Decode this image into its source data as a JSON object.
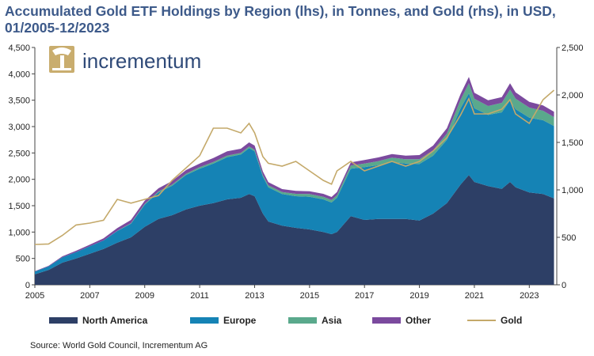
{
  "chart_data": {
    "type": "area",
    "title": "Accumulated Gold ETF Holdings by Region (lhs), in Tonnes, and Gold (rhs), in USD, 01/2005-12/2023",
    "brand": "incrementum",
    "source": "Source: World Gold Council, Incrementum AG",
    "x_ticks": [
      "2005",
      "2007",
      "2009",
      "2011",
      "2013",
      "2015",
      "2017",
      "2019",
      "2021",
      "2023"
    ],
    "y_left_ticks": [
      "0",
      "500",
      "1,000",
      "1,500",
      "2,000",
      "2,500",
      "3,000",
      "3,500",
      "4,000",
      "4,500"
    ],
    "y_right_ticks": [
      "0",
      "500",
      "1,000",
      "1,500",
      "2,000",
      "2,500"
    ],
    "ylim_left": [
      0,
      4500
    ],
    "ylim_right": [
      0,
      2500
    ],
    "xlim": [
      2005.0,
      2024.0
    ],
    "x": [
      2005.0,
      2005.5,
      2006.0,
      2006.5,
      2007.0,
      2007.5,
      2008.0,
      2008.5,
      2009.0,
      2009.5,
      2010.0,
      2010.5,
      2011.0,
      2011.5,
      2012.0,
      2012.5,
      2012.8,
      2013.0,
      2013.3,
      2013.5,
      2014.0,
      2014.5,
      2015.0,
      2015.5,
      2015.8,
      2016.0,
      2016.5,
      2017.0,
      2017.5,
      2018.0,
      2018.5,
      2019.0,
      2019.5,
      2020.0,
      2020.5,
      2020.8,
      2021.0,
      2021.5,
      2022.0,
      2022.3,
      2022.5,
      2023.0,
      2023.5,
      2023.9
    ],
    "series": [
      {
        "name": "North America",
        "color": "#2d3f66",
        "values": [
          200,
          280,
          420,
          500,
          590,
          680,
          800,
          900,
          1100,
          1250,
          1320,
          1430,
          1500,
          1550,
          1620,
          1650,
          1720,
          1680,
          1350,
          1200,
          1120,
          1080,
          1050,
          1000,
          960,
          1000,
          1300,
          1230,
          1250,
          1250,
          1250,
          1220,
          1350,
          1550,
          1900,
          2080,
          1950,
          1870,
          1820,
          1950,
          1850,
          1750,
          1720,
          1640
        ]
      },
      {
        "name": "Europe",
        "color": "#1583b5",
        "values": [
          50,
          70,
          100,
          120,
          140,
          160,
          220,
          260,
          420,
          500,
          560,
          650,
          700,
          750,
          800,
          820,
          870,
          850,
          700,
          650,
          600,
          600,
          620,
          620,
          600,
          650,
          900,
          1000,
          1020,
          1080,
          1050,
          1070,
          1100,
          1200,
          1450,
          1550,
          1400,
          1350,
          1450,
          1550,
          1480,
          1420,
          1400,
          1370
        ]
      },
      {
        "name": "Asia",
        "color": "#5aa98c",
        "values": [
          0,
          0,
          0,
          0,
          0,
          0,
          5,
          10,
          15,
          20,
          20,
          25,
          30,
          30,
          30,
          30,
          30,
          30,
          30,
          35,
          40,
          45,
          50,
          50,
          50,
          50,
          60,
          70,
          75,
          80,
          80,
          90,
          100,
          120,
          160,
          190,
          180,
          170,
          180,
          200,
          200,
          190,
          180,
          170
        ]
      },
      {
        "name": "Other",
        "color": "#7b4a9e",
        "values": [
          10,
          10,
          20,
          25,
          30,
          40,
          50,
          60,
          60,
          60,
          70,
          70,
          70,
          75,
          80,
          80,
          80,
          80,
          70,
          60,
          55,
          55,
          55,
          55,
          55,
          60,
          60,
          65,
          70,
          70,
          70,
          80,
          90,
          100,
          110,
          120,
          110,
          110,
          110,
          120,
          120,
          110,
          100,
          100
        ]
      },
      {
        "name": "Gold",
        "color": "#c4a96a",
        "axis": "right",
        "values": [
          425,
          430,
          520,
          630,
          650,
          680,
          900,
          860,
          900,
          940,
          1100,
          1230,
          1360,
          1650,
          1650,
          1600,
          1700,
          1600,
          1350,
          1280,
          1250,
          1300,
          1200,
          1100,
          1060,
          1200,
          1300,
          1200,
          1250,
          1300,
          1250,
          1300,
          1410,
          1550,
          1790,
          1960,
          1800,
          1800,
          1850,
          1950,
          1800,
          1700,
          1950,
          2050
        ]
      }
    ]
  }
}
